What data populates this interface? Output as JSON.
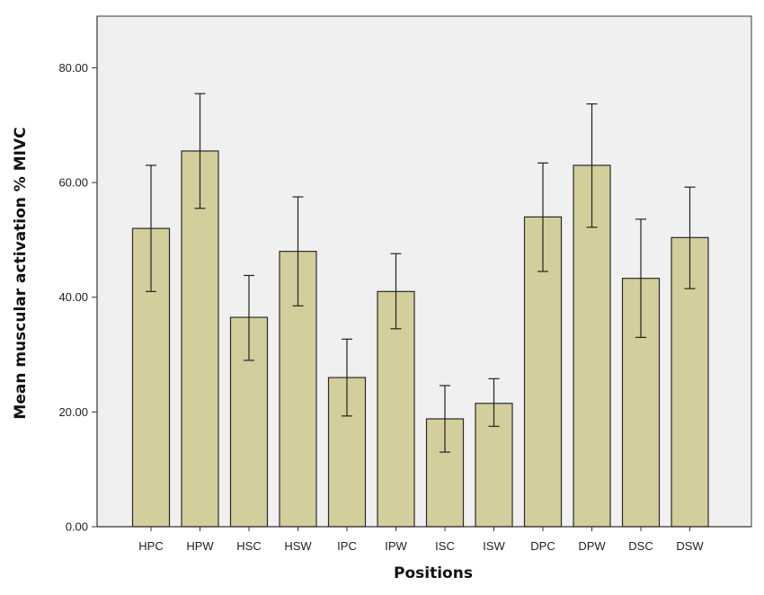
{
  "chart_data": {
    "type": "bar",
    "title": "",
    "xlabel": "Positions",
    "ylabel": "Mean muscular activation % MIVC",
    "categories": [
      "HPC",
      "HPW",
      "HSC",
      "HSW",
      "IPC",
      "IPW",
      "ISC",
      "ISW",
      "DPC",
      "DPW",
      "DSC",
      "DSW"
    ],
    "values": [
      52.0,
      65.5,
      36.5,
      48.0,
      26.0,
      41.0,
      18.8,
      21.5,
      54.0,
      63.0,
      43.3,
      50.4
    ],
    "error_low": [
      41.0,
      55.5,
      29.0,
      38.5,
      19.3,
      34.5,
      13.0,
      17.5,
      44.5,
      52.2,
      33.0,
      41.5
    ],
    "error_high": [
      63.0,
      75.5,
      43.8,
      57.5,
      32.7,
      47.6,
      24.6,
      25.8,
      63.4,
      73.7,
      53.6,
      59.2
    ],
    "yticks": [
      "0.00",
      "20.00",
      "40.00",
      "60.00",
      "80.00"
    ],
    "ytick_values": [
      0,
      20,
      40,
      60,
      80
    ],
    "ylim": [
      0,
      89
    ],
    "grid": false,
    "legend": "none",
    "colors": {
      "bar_fill": "#d4cd9c",
      "bar_stroke": "#2a2a2a",
      "plot_background": "#f0f0f0",
      "axis": "#333333"
    }
  }
}
